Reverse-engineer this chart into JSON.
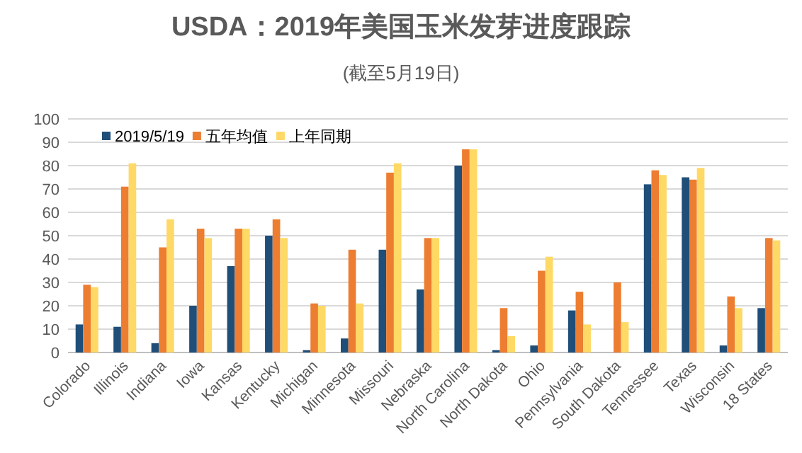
{
  "chart_data": {
    "type": "bar",
    "title": "USDA：2019年美国玉米发芽进度跟踪",
    "subtitle": "(截至5月19日)",
    "categories": [
      "Colorado",
      "Illinois",
      "Indiana",
      "Iowa",
      "Kansas",
      "Kentucky",
      "Michigan",
      "Minnesota",
      "Missouri",
      "Nebraska",
      "North Carolina",
      "North Dakota",
      "Ohio",
      "Pennsylvania",
      "South Dakota",
      "Tennessee",
      "Texas",
      "Wisconsin",
      "18 States"
    ],
    "series": [
      {
        "name": "2019/5/19",
        "color": "#1f4e79",
        "values": [
          12,
          11,
          4,
          20,
          37,
          50,
          1,
          6,
          44,
          27,
          80,
          1,
          3,
          18,
          0,
          72,
          75,
          3,
          19
        ]
      },
      {
        "name": "五年均值",
        "color": "#ed7d31",
        "values": [
          29,
          71,
          45,
          53,
          53,
          57,
          21,
          44,
          77,
          49,
          87,
          19,
          35,
          26,
          30,
          78,
          74,
          24,
          49
        ]
      },
      {
        "name": "上年同期",
        "color": "#ffd966",
        "values": [
          28,
          81,
          57,
          49,
          53,
          49,
          20,
          21,
          81,
          49,
          87,
          7,
          41,
          12,
          13,
          76,
          79,
          19,
          48
        ]
      }
    ],
    "ylim": [
      0,
      100
    ],
    "yticks": [
      0,
      10,
      20,
      30,
      40,
      50,
      60,
      70,
      80,
      90,
      100
    ],
    "grid": "y",
    "legend": "top left"
  }
}
